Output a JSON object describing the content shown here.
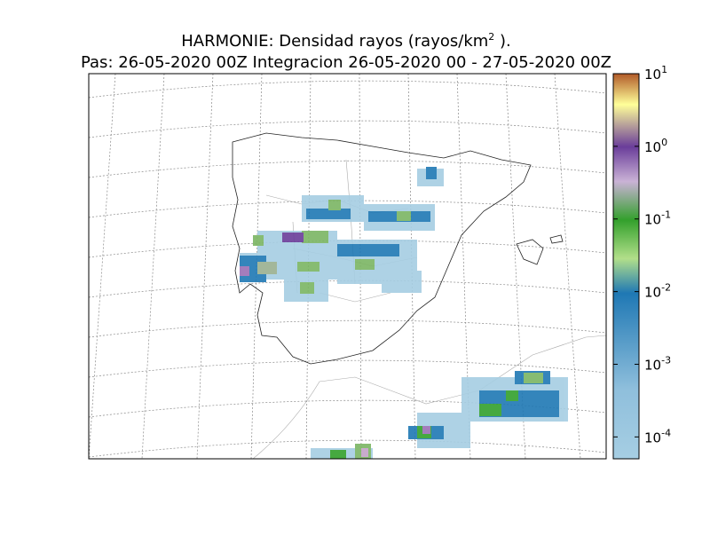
{
  "chart_data": {
    "type": "map",
    "title": {
      "text": "HARMONIE: Densidad rayos  (rayos/km",
      "sup": "2",
      "end": " )."
    },
    "subtitle": "Pas: 26-05-2020 00Z Integracion 26-05-2020 00 - 27-05-2020 00Z",
    "colorbar": {
      "log": true,
      "clim": [
        5e-05,
        10
      ],
      "ticks": [
        {
          "value": 0.0001,
          "label": "10",
          "exponent": "-4"
        },
        {
          "value": 0.001,
          "label": "10",
          "exponent": "-3"
        },
        {
          "value": 0.01,
          "label": "10",
          "exponent": "-2"
        },
        {
          "value": 0.1,
          "label": "10",
          "exponent": "-1"
        },
        {
          "value": 1,
          "label": "10",
          "exponent": "0"
        },
        {
          "value": 10,
          "label": "10",
          "exponent": "1"
        }
      ]
    }
  }
}
